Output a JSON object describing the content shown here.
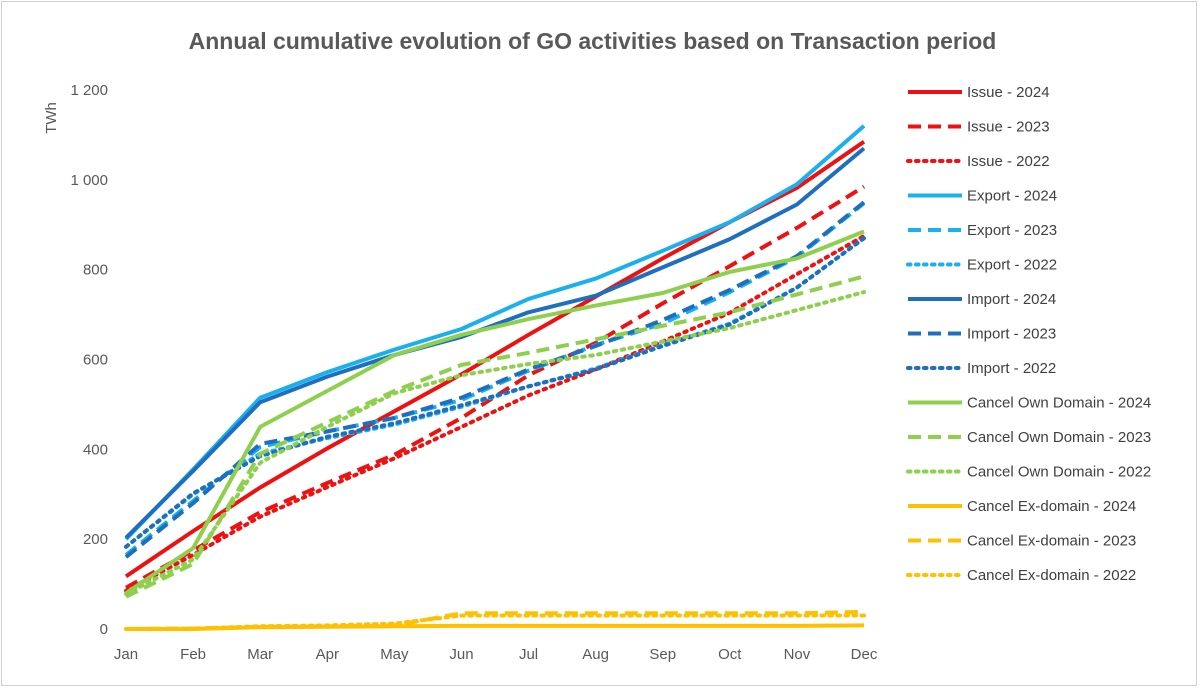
{
  "chart_data": {
    "type": "line",
    "title": "Annual cumulative evolution of GO activities based on Transaction period",
    "xlabel": "",
    "ylabel": "TWh",
    "ylim": [
      0,
      1200
    ],
    "yticks": [
      0,
      200,
      400,
      600,
      800,
      1000,
      1200
    ],
    "ytick_labels": [
      "0",
      "200",
      "400",
      "600",
      "800",
      "1 000",
      "1 200"
    ],
    "grid": false,
    "legend_position": "right",
    "categories": [
      "Jan",
      "Feb",
      "Mar",
      "Apr",
      "May",
      "Jun",
      "Jul",
      "Aug",
      "Sep",
      "Oct",
      "Nov",
      "Dec"
    ],
    "series": [
      {
        "name": "Issue - 2024",
        "color": "#ee1111",
        "style": "solid",
        "values": [
          117,
          218,
          315,
          402,
          485,
          567,
          655,
          740,
          825,
          906,
          982,
          1085
        ]
      },
      {
        "name": "Issue - 2023",
        "color": "#ee1111",
        "style": "dashed",
        "values": [
          92,
          175,
          260,
          325,
          388,
          470,
          565,
          637,
          725,
          808,
          893,
          985
        ]
      },
      {
        "name": "Issue - 2022",
        "color": "#ee1111",
        "style": "dotted",
        "values": [
          85,
          165,
          250,
          316,
          380,
          450,
          520,
          578,
          640,
          704,
          790,
          875
        ]
      },
      {
        "name": "Export - 2024",
        "color": "#1ab0ee",
        "style": "solid",
        "values": [
          200,
          355,
          515,
          572,
          622,
          668,
          735,
          780,
          842,
          906,
          990,
          1120
        ]
      },
      {
        "name": "Export - 2023",
        "color": "#1ab0ee",
        "style": "dashed",
        "values": [
          165,
          285,
          405,
          440,
          470,
          510,
          575,
          632,
          680,
          750,
          828,
          948
        ]
      },
      {
        "name": "Export - 2022",
        "color": "#1ab0ee",
        "style": "dotted",
        "values": [
          183,
          300,
          390,
          425,
          455,
          495,
          540,
          580,
          632,
          680,
          760,
          870
        ]
      },
      {
        "name": "Import - 2024",
        "color": "#1f6fbf",
        "style": "solid",
        "values": [
          203,
          352,
          505,
          562,
          610,
          650,
          705,
          742,
          805,
          868,
          945,
          1070
        ]
      },
      {
        "name": "Import - 2023",
        "color": "#1f6fbf",
        "style": "dashed",
        "values": [
          160,
          280,
          412,
          440,
          470,
          515,
          578,
          630,
          688,
          755,
          830,
          950
        ]
      },
      {
        "name": "Import - 2022",
        "color": "#1f6fbf",
        "style": "dotted",
        "values": [
          183,
          302,
          385,
          428,
          458,
          498,
          540,
          578,
          630,
          678,
          760,
          870
        ]
      },
      {
        "name": "Cancel Own Domain - 2024",
        "color": "#8ed04e",
        "style": "solid",
        "values": [
          80,
          180,
          450,
          530,
          610,
          655,
          690,
          720,
          748,
          795,
          825,
          885
        ]
      },
      {
        "name": "Cancel Own Domain - 2023",
        "color": "#8ed04e",
        "style": "dashed",
        "values": [
          72,
          145,
          390,
          460,
          530,
          588,
          615,
          645,
          675,
          705,
          745,
          785
        ]
      },
      {
        "name": "Cancel Own Domain - 2022",
        "color": "#8ed04e",
        "style": "dotted",
        "values": [
          78,
          155,
          370,
          450,
          525,
          565,
          590,
          610,
          640,
          670,
          710,
          750
        ]
      },
      {
        "name": "Cancel Ex-domain - 2024",
        "color": "#ffc000",
        "style": "solid",
        "values": [
          0,
          0,
          4,
          5,
          6,
          7,
          7,
          7,
          7,
          7,
          7,
          8
        ]
      },
      {
        "name": "Cancel Ex-domain - 2023",
        "color": "#ffc000",
        "style": "dashed",
        "values": [
          0,
          1,
          5,
          6,
          8,
          35,
          35,
          35,
          35,
          35,
          35,
          38
        ]
      },
      {
        "name": "Cancel Ex-domain - 2022",
        "color": "#ffc000",
        "style": "dotted",
        "values": [
          0,
          1,
          6,
          8,
          12,
          30,
          30,
          30,
          30,
          30,
          30,
          30
        ]
      }
    ]
  }
}
